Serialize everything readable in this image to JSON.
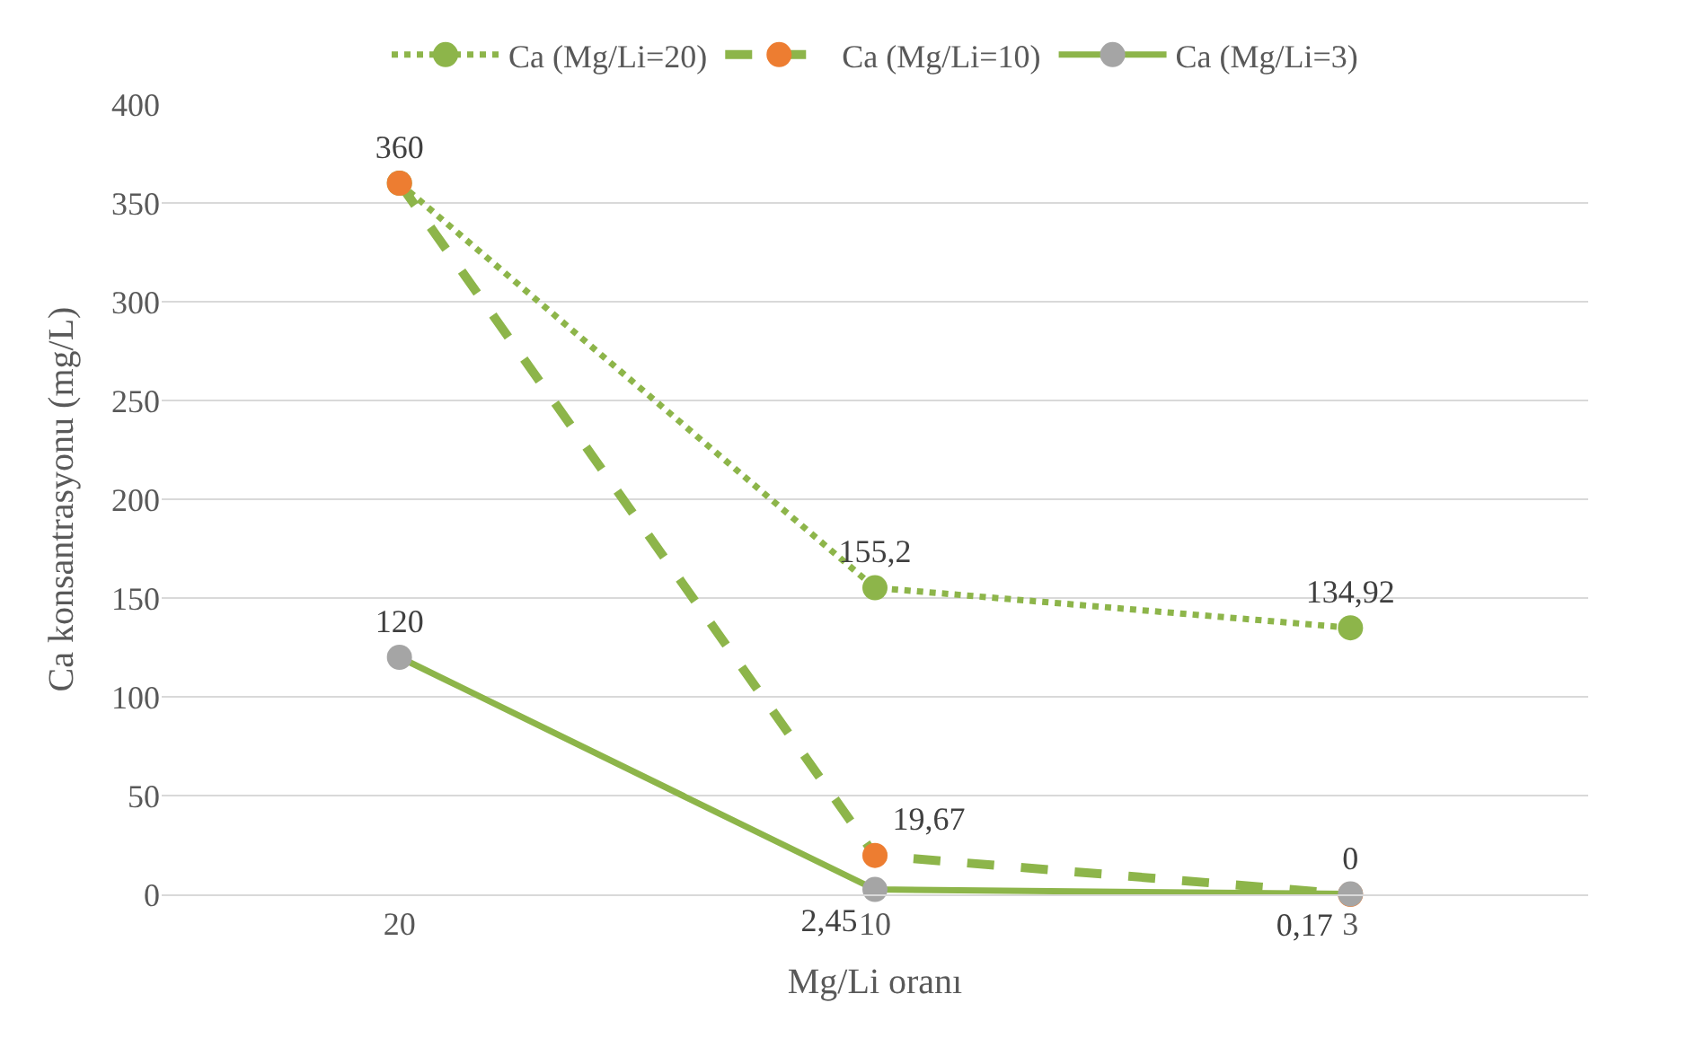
{
  "chart_data": {
    "type": "line",
    "xlabel": "Mg/Li oranı",
    "ylabel": "Ca konsantrasyonu (mg/L)",
    "categories": [
      "20",
      "10",
      "3"
    ],
    "ylim": [
      0,
      400
    ],
    "yticks": [
      0,
      50,
      100,
      150,
      200,
      250,
      300,
      350,
      400
    ],
    "grid": "y",
    "legend": "top",
    "marker": "circle",
    "series": [
      {
        "name": "Ca (Mg/Li=20)",
        "color": "#8db54a",
        "colors": [
          "#8db54a",
          "#8db54a",
          "#8db54a"
        ],
        "line_style": "dotted",
        "values": [
          360,
          155.2,
          134.92
        ],
        "value_labels": [
          "360",
          "155,2",
          "134,92"
        ]
      },
      {
        "name": "Ca (Mg/Li=10)",
        "color": "#8db54a",
        "colors": [
          "#ed7d31",
          "#ed7d31",
          "#ed7d31"
        ],
        "line_style": "dashed",
        "values": [
          360,
          19.67,
          0
        ],
        "value_labels": [
          null,
          "19,67",
          "0"
        ]
      },
      {
        "name": "Ca (Mg/Li=3)",
        "color": "#8db54a",
        "colors": [
          "#a5a5a5",
          "#a5a5a5",
          "#a5a5a5"
        ],
        "line_style": "solid",
        "values": [
          120,
          2.45,
          0.17
        ],
        "value_labels": [
          "120",
          "2,45",
          "0,17"
        ]
      }
    ]
  }
}
